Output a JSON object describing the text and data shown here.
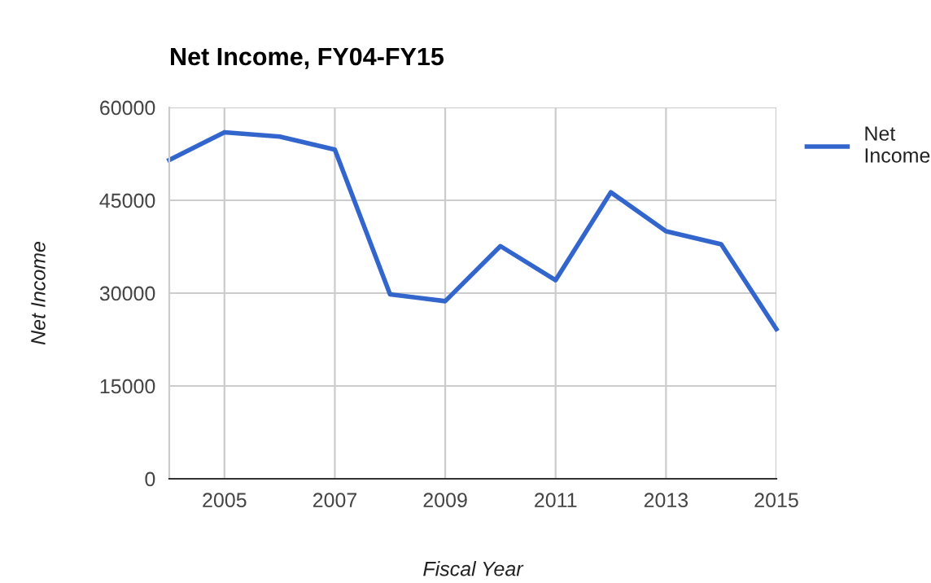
{
  "chart_data": {
    "type": "line",
    "title": "Net Income, FY04-FY15",
    "xlabel": "Fiscal Year",
    "ylabel": "Net Income",
    "x": [
      2004,
      2005,
      2006,
      2007,
      2008,
      2009,
      2010,
      2011,
      2012,
      2013,
      2014,
      2015
    ],
    "series": [
      {
        "name": "Net Income",
        "color": "#3366cc",
        "values": [
          51500,
          56000,
          55300,
          53200,
          29800,
          28700,
          37600,
          32100,
          46300,
          40000,
          37900,
          24200
        ]
      }
    ],
    "xlim": [
      2004,
      2015
    ],
    "xticks": [
      2005,
      2007,
      2009,
      2011,
      2013,
      2015
    ],
    "ylim": [
      0,
      60000
    ],
    "yticks": [
      0,
      15000,
      30000,
      45000,
      60000
    ],
    "grid": true,
    "legend": "right",
    "marker": "none",
    "line_style": "solid"
  }
}
